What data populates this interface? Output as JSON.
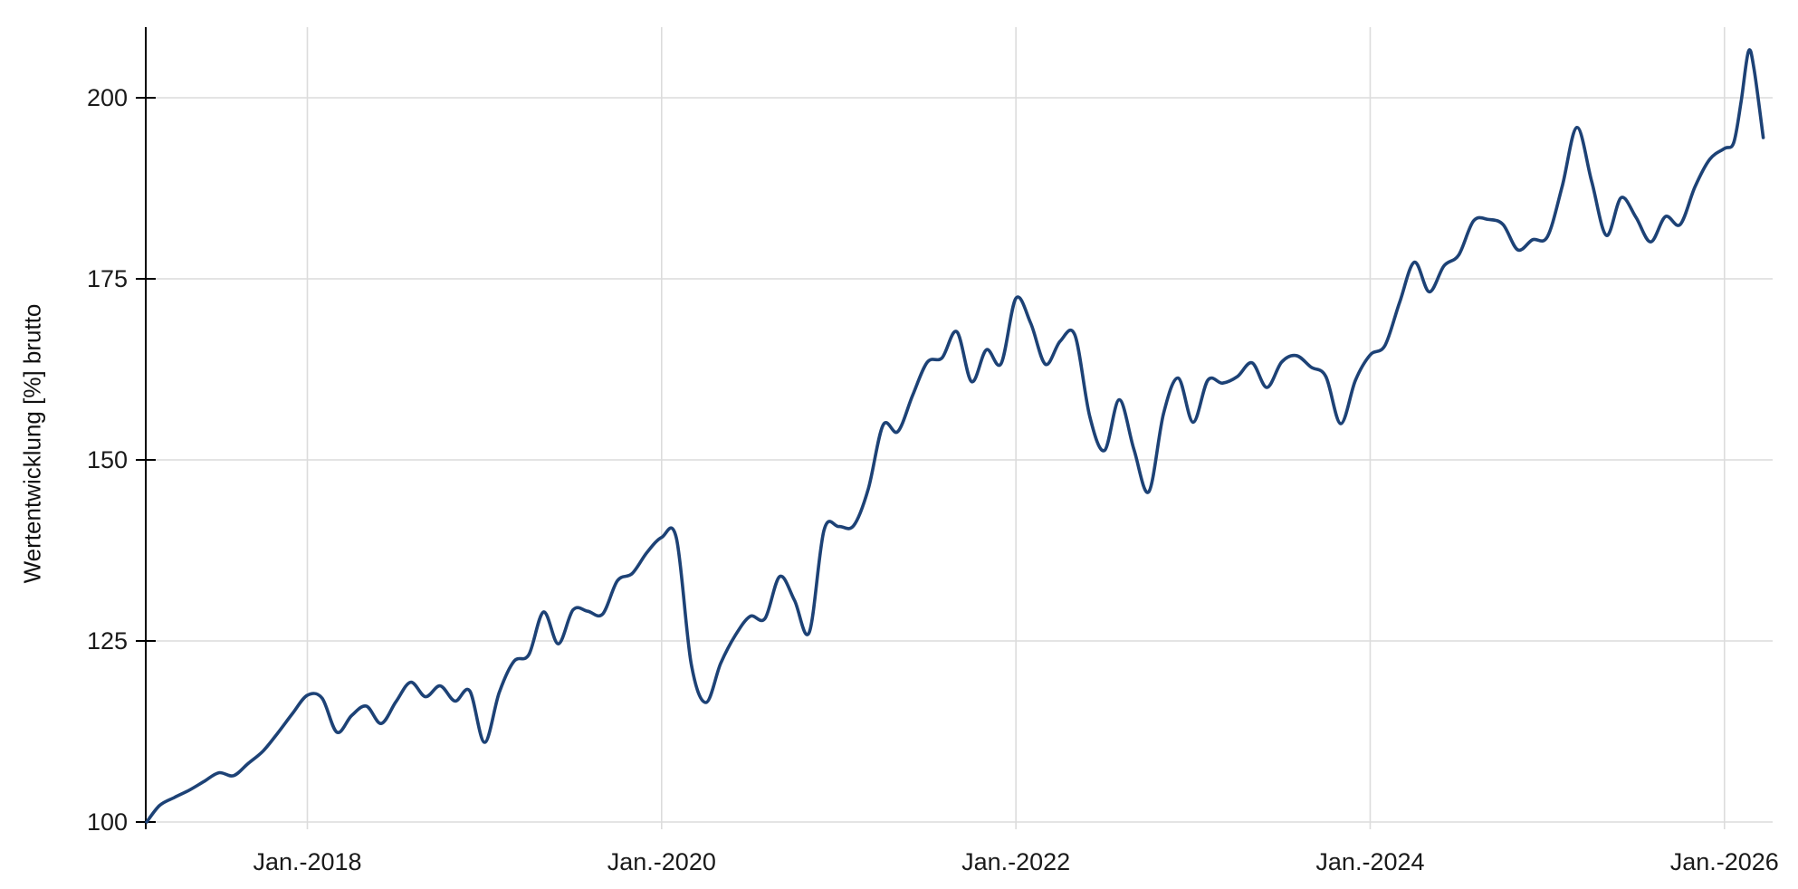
{
  "chart_data": {
    "type": "line",
    "title": "",
    "xlabel": "",
    "ylabel": "Wertentwicklung [%] brutto",
    "legend_position": "none",
    "grid": true,
    "background_color": "#ffffff",
    "line_color": "#1d4276",
    "grid_color": "#dcdcdc",
    "axis_color": "#000000",
    "text_color": "#1a1a1a",
    "ylim": [
      97.25,
      209.75
    ],
    "y_ticks": [
      "100",
      "125",
      "150",
      "175",
      "200"
    ],
    "y_tick_values": [
      100,
      125,
      150,
      175,
      200
    ],
    "x_ticks": [
      {
        "label": "Jan.-2018",
        "date": "2018-01-01"
      },
      {
        "label": "Jan.-2020",
        "date": "2020-01-01"
      },
      {
        "label": "Jan.-2022",
        "date": "2022-01-01"
      },
      {
        "label": "Jan.-2024",
        "date": "2024-01-01"
      },
      {
        "label": "Jan.-2026",
        "date": "2026-01-01"
      }
    ],
    "series": [
      {
        "name": "Wertentwicklung [%] brutto",
        "points": [
          [
            "2017-02-01",
            100.0
          ],
          [
            "2017-03-01",
            102.3
          ],
          [
            "2017-04-01",
            103.4
          ],
          [
            "2017-05-01",
            104.4
          ],
          [
            "2017-06-01",
            105.6
          ],
          [
            "2017-07-01",
            106.8
          ],
          [
            "2017-08-01",
            106.4
          ],
          [
            "2017-09-01",
            108.1
          ],
          [
            "2017-10-01",
            109.8
          ],
          [
            "2017-11-01",
            112.3
          ],
          [
            "2017-12-01",
            115.0
          ],
          [
            "2018-01-01",
            117.5
          ],
          [
            "2018-02-01",
            117.1
          ],
          [
            "2018-03-01",
            112.4
          ],
          [
            "2018-04-01",
            114.7
          ],
          [
            "2018-05-01",
            116.0
          ],
          [
            "2018-06-01",
            113.6
          ],
          [
            "2018-07-01",
            116.6
          ],
          [
            "2018-08-01",
            119.3
          ],
          [
            "2018-09-01",
            117.3
          ],
          [
            "2018-10-01",
            118.8
          ],
          [
            "2018-11-01",
            116.7
          ],
          [
            "2018-12-01",
            118.1
          ],
          [
            "2019-01-01",
            111.0
          ],
          [
            "2019-02-01",
            117.9
          ],
          [
            "2019-03-01",
            122.2
          ],
          [
            "2019-04-01",
            123.1
          ],
          [
            "2019-05-01",
            129.0
          ],
          [
            "2019-06-01",
            124.6
          ],
          [
            "2019-07-01",
            129.3
          ],
          [
            "2019-08-01",
            129.1
          ],
          [
            "2019-09-01",
            128.7
          ],
          [
            "2019-10-01",
            133.3
          ],
          [
            "2019-11-01",
            134.3
          ],
          [
            "2019-12-01",
            137.2
          ],
          [
            "2020-01-01",
            139.3
          ],
          [
            "2020-02-01",
            139.2
          ],
          [
            "2020-03-01",
            121.9
          ],
          [
            "2020-04-01",
            116.5
          ],
          [
            "2020-05-01",
            121.9
          ],
          [
            "2020-06-01",
            125.8
          ],
          [
            "2020-07-01",
            128.4
          ],
          [
            "2020-08-01",
            128.1
          ],
          [
            "2020-09-01",
            133.9
          ],
          [
            "2020-10-01",
            130.6
          ],
          [
            "2020-11-01",
            126.2
          ],
          [
            "2020-12-01",
            140.3
          ],
          [
            "2021-01-01",
            140.8
          ],
          [
            "2021-02-01",
            140.9
          ],
          [
            "2021-03-01",
            146.0
          ],
          [
            "2021-04-01",
            154.8
          ],
          [
            "2021-05-01",
            153.9
          ],
          [
            "2021-06-01",
            158.9
          ],
          [
            "2021-07-01",
            163.5
          ],
          [
            "2021-08-01",
            164.1
          ],
          [
            "2021-09-01",
            167.7
          ],
          [
            "2021-10-01",
            160.8
          ],
          [
            "2021-11-01",
            165.2
          ],
          [
            "2021-12-01",
            163.3
          ],
          [
            "2022-01-01",
            172.3
          ],
          [
            "2022-02-01",
            168.9
          ],
          [
            "2022-03-01",
            163.2
          ],
          [
            "2022-04-01",
            166.4
          ],
          [
            "2022-05-01",
            167.2
          ],
          [
            "2022-06-01",
            156.0
          ],
          [
            "2022-07-01",
            151.3
          ],
          [
            "2022-08-01",
            158.3
          ],
          [
            "2022-09-01",
            151.4
          ],
          [
            "2022-10-01",
            145.6
          ],
          [
            "2022-11-01",
            156.4
          ],
          [
            "2022-12-01",
            161.3
          ],
          [
            "2023-01-01",
            155.2
          ],
          [
            "2023-02-01",
            161.0
          ],
          [
            "2023-03-01",
            160.6
          ],
          [
            "2023-04-01",
            161.5
          ],
          [
            "2023-05-01",
            163.4
          ],
          [
            "2023-06-01",
            160.0
          ],
          [
            "2023-07-01",
            163.5
          ],
          [
            "2023-08-01",
            164.4
          ],
          [
            "2023-09-01",
            162.8
          ],
          [
            "2023-10-01",
            161.5
          ],
          [
            "2023-11-01",
            155.0
          ],
          [
            "2023-12-01",
            161.0
          ],
          [
            "2024-01-01",
            164.5
          ],
          [
            "2024-02-01",
            165.8
          ],
          [
            "2024-03-01",
            171.8
          ],
          [
            "2024-04-01",
            177.3
          ],
          [
            "2024-05-01",
            173.2
          ],
          [
            "2024-06-01",
            176.8
          ],
          [
            "2024-07-01",
            178.3
          ],
          [
            "2024-08-01",
            183.0
          ],
          [
            "2024-09-01",
            183.2
          ],
          [
            "2024-10-01",
            182.5
          ],
          [
            "2024-11-01",
            179.0
          ],
          [
            "2024-12-01",
            180.4
          ],
          [
            "2025-01-01",
            180.8
          ],
          [
            "2025-02-01",
            187.7
          ],
          [
            "2025-03-01",
            195.9
          ],
          [
            "2025-04-01",
            188.5
          ],
          [
            "2025-05-01",
            181.0
          ],
          [
            "2025-06-01",
            186.2
          ],
          [
            "2025-07-01",
            183.5
          ],
          [
            "2025-08-01",
            180.1
          ],
          [
            "2025-09-01",
            183.6
          ],
          [
            "2025-10-01",
            182.5
          ],
          [
            "2025-11-01",
            187.7
          ],
          [
            "2025-12-01",
            191.5
          ],
          [
            "2026-01-01",
            193.0
          ],
          [
            "2026-01-20",
            193.8
          ],
          [
            "2026-02-05",
            199.5
          ],
          [
            "2026-02-20",
            206.4
          ],
          [
            "2026-03-01",
            204.0
          ],
          [
            "2026-03-20",
            194.5
          ]
        ]
      }
    ]
  }
}
